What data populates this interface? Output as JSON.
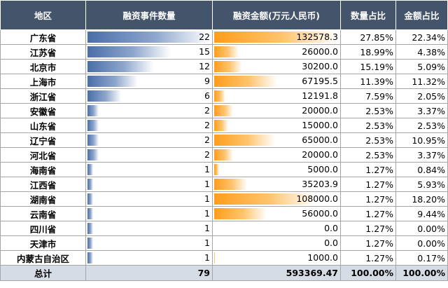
{
  "headers": {
    "region": "地区",
    "count": "融资事件数量",
    "amount": "融资金额(万元人民币)",
    "count_share": "数量占比",
    "amount_share": "金额占比"
  },
  "rows": [
    {
      "region": "广东省",
      "count": "22",
      "amount": "132578.3",
      "count_share": "27.85%",
      "amount_share": "22.34%"
    },
    {
      "region": "江苏省",
      "count": "15",
      "amount": "26000.0",
      "count_share": "18.99%",
      "amount_share": "4.38%"
    },
    {
      "region": "北京市",
      "count": "12",
      "amount": "30200.0",
      "count_share": "15.19%",
      "amount_share": "5.09%"
    },
    {
      "region": "上海市",
      "count": "9",
      "amount": "67195.5",
      "count_share": "11.39%",
      "amount_share": "11.32%"
    },
    {
      "region": "浙江省",
      "count": "6",
      "amount": "12191.8",
      "count_share": "7.59%",
      "amount_share": "2.05%"
    },
    {
      "region": "安徽省",
      "count": "2",
      "amount": "20000.0",
      "count_share": "2.53%",
      "amount_share": "3.37%"
    },
    {
      "region": "山东省",
      "count": "2",
      "amount": "15000.0",
      "count_share": "2.53%",
      "amount_share": "2.53%"
    },
    {
      "region": "辽宁省",
      "count": "2",
      "amount": "65000.0",
      "count_share": "2.53%",
      "amount_share": "10.95%"
    },
    {
      "region": "河北省",
      "count": "2",
      "amount": "20000.0",
      "count_share": "2.53%",
      "amount_share": "3.37%"
    },
    {
      "region": "海南省",
      "count": "1",
      "amount": "5000.0",
      "count_share": "1.27%",
      "amount_share": "0.84%"
    },
    {
      "region": "江西省",
      "count": "1",
      "amount": "35203.9",
      "count_share": "1.27%",
      "amount_share": "5.93%"
    },
    {
      "region": "湖南省",
      "count": "1",
      "amount": "108000.0",
      "count_share": "1.27%",
      "amount_share": "18.20%"
    },
    {
      "region": "云南省",
      "count": "1",
      "amount": "56000.0",
      "count_share": "1.27%",
      "amount_share": "9.44%"
    },
    {
      "region": "四川省",
      "count": "1",
      "amount": "0.0",
      "count_share": "1.27%",
      "amount_share": "0.00%"
    },
    {
      "region": "天津市",
      "count": "1",
      "amount": "0.0",
      "count_share": "1.27%",
      "amount_share": "0.00%"
    },
    {
      "region": "内蒙古自治区",
      "count": "1",
      "amount": "1000.0",
      "count_share": "1.27%",
      "amount_share": "0.17%"
    }
  ],
  "total": {
    "region": "总计",
    "count": "79",
    "amount": "593369.47",
    "count_share": "100.00%",
    "amount_share": "100.00%"
  },
  "colors": {
    "header_bg": "#44546a",
    "count_bar": "#4a6ea9",
    "amount_bar": "#ff9d1b",
    "total_bg": "#d6dce5"
  }
}
